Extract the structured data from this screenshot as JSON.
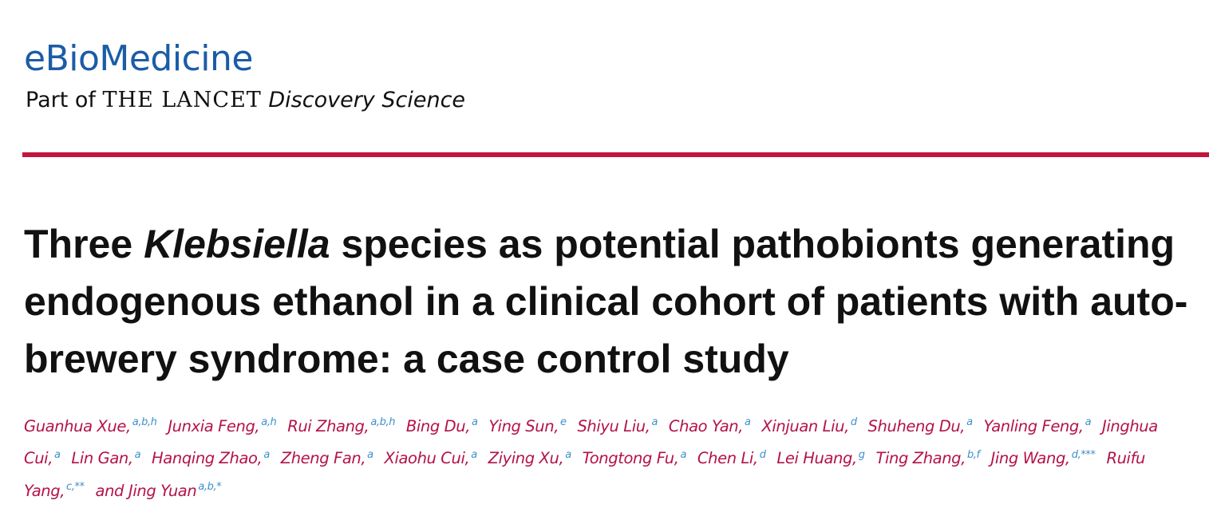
{
  "header": {
    "journal": "eBioMedicine",
    "part_of": "Part of",
    "lancet": "THE LANCET",
    "discovery": "Discovery Science"
  },
  "title": {
    "before": "Three",
    "italic": "Klebsiella",
    "after": "species as potential pathobionts generating endogenous ethanol in a clinical cohort of patients with auto-brewery syndrome: a case control study"
  },
  "authors": [
    {
      "name": "Guanhua Xue,",
      "aff": "a,b,h"
    },
    {
      "name": "Junxia Feng,",
      "aff": "a,h"
    },
    {
      "name": "Rui Zhang,",
      "aff": "a,b,h"
    },
    {
      "name": "Bing Du,",
      "aff": "a"
    },
    {
      "name": "Ying Sun,",
      "aff": "e"
    },
    {
      "name": "Shiyu Liu,",
      "aff": "a"
    },
    {
      "name": "Chao Yan,",
      "aff": "a"
    },
    {
      "name": "Xinjuan Liu,",
      "aff": "d"
    },
    {
      "name": "Shuheng Du,",
      "aff": "a"
    },
    {
      "name": "Yanling Feng,",
      "aff": "a"
    },
    {
      "name": "Jinghua Cui,",
      "aff": "a"
    },
    {
      "name": "Lin Gan,",
      "aff": "a"
    },
    {
      "name": "Hanqing Zhao,",
      "aff": "a"
    },
    {
      "name": "Zheng Fan,",
      "aff": "a"
    },
    {
      "name": "Xiaohu Cui,",
      "aff": "a"
    },
    {
      "name": "Ziying Xu,",
      "aff": "a"
    },
    {
      "name": "Tongtong Fu,",
      "aff": "a"
    },
    {
      "name": "Chen Li,",
      "aff": "d"
    },
    {
      "name": "Lei Huang,",
      "aff": "g"
    },
    {
      "name": "Ting Zhang,",
      "aff": "b,f"
    },
    {
      "name": "Jing Wang,",
      "aff": "d,***"
    },
    {
      "name": "Ruifu Yang,",
      "aff": "c,**"
    },
    {
      "name": "Jing Yuan",
      "aff": "a,b,*"
    }
  ],
  "conjunction": "and"
}
